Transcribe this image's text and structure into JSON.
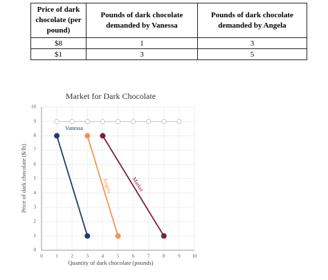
{
  "table": {
    "header": [
      "Price of dark chocolate (per pound)",
      "Pounds of dark chocolate demanded by Vanessa",
      "Pounds of dark chocolate demanded by Angela"
    ],
    "rows": [
      [
        "$8",
        "1",
        "3"
      ],
      [
        "$1",
        "3",
        "5"
      ]
    ]
  },
  "chart_data": {
    "type": "line",
    "title": "Market for Dark Chocolate",
    "x_label": "Quantity of dark chocolate (pounds)",
    "y_label": "Price of dark chocolate ($/lb)",
    "xlim": [
      0,
      10
    ],
    "ylim": [
      0,
      10
    ],
    "xticks": [
      0,
      1,
      2,
      3,
      4,
      5,
      6,
      7,
      8,
      9,
      10
    ],
    "yticks": [
      0,
      1,
      2,
      3,
      4,
      5,
      6,
      7,
      8,
      9,
      10
    ],
    "grid": true,
    "series": [
      {
        "color": "#c8c8c8",
        "x": [
          1,
          2,
          3,
          4,
          5,
          6,
          7,
          8,
          9
        ],
        "values": [
          9,
          9,
          9,
          9,
          9,
          9,
          9,
          9,
          9
        ]
      },
      {
        "name": "Vanessa",
        "color": "#1f3d6b",
        "x": [
          1,
          3
        ],
        "values": [
          8,
          1
        ]
      },
      {
        "name": "Angela",
        "color": "#f39457",
        "x": [
          3,
          5
        ],
        "values": [
          8,
          1
        ]
      },
      {
        "name": "Market",
        "color": "#7a2136",
        "x": [
          4,
          8
        ],
        "values": [
          8,
          1
        ]
      }
    ]
  }
}
